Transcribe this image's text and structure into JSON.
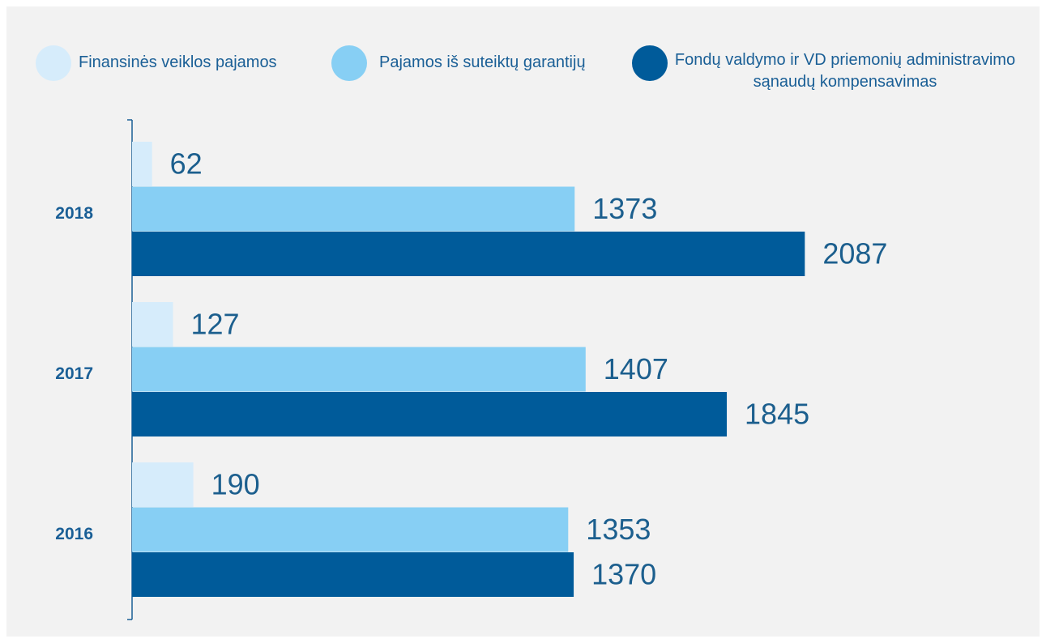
{
  "chart_data": {
    "type": "hbar",
    "categories": [
      "2018",
      "2017",
      "2016"
    ],
    "series": [
      {
        "name": "Finansinės veiklos pajamos",
        "color": "#d6ecfb",
        "values": [
          62,
          127,
          190
        ]
      },
      {
        "name": "Pajamos iš suteiktų garantijų",
        "color": "#87cff4",
        "values": [
          1373,
          1407,
          1353
        ]
      },
      {
        "name": "Fondų valdymo ir VD priemonių administravimo sąnaudų kompensavimas",
        "color": "#005b9a",
        "values": [
          2087,
          1845,
          1370
        ]
      }
    ],
    "xlim": [
      0,
      2800
    ],
    "legend": "top"
  }
}
